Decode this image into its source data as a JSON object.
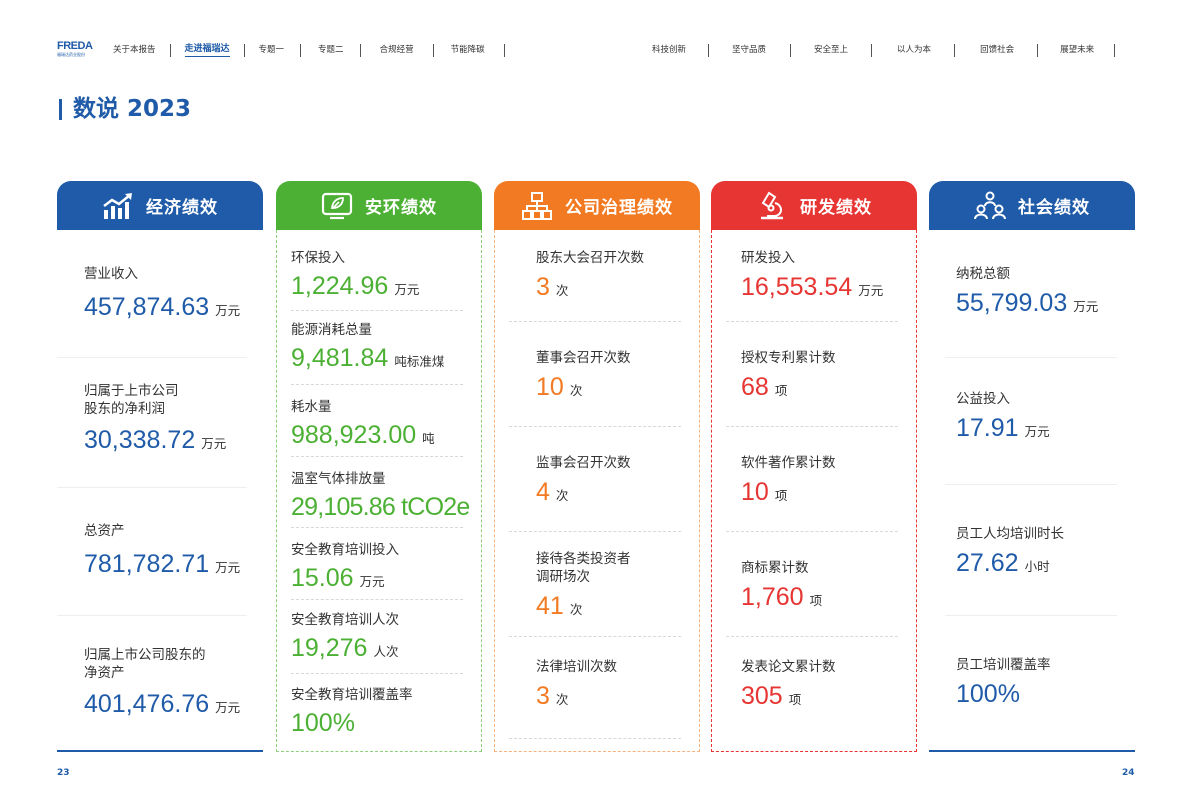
{
  "logo": {
    "text": "FREDA",
    "sub": "福瑞达药业股份"
  },
  "nav_left": [
    "关于本报告",
    "走进福瑞达",
    "专题一",
    "专题二",
    "合规经营",
    "节能降碳"
  ],
  "nav_active_index": 1,
  "nav_right": [
    "科技创新",
    "坚守品质",
    "安全至上",
    "以人为本",
    "回馈社会",
    "展望未来"
  ],
  "page_title": "数说 2023",
  "colors": {
    "blue": "#1f5ba8",
    "green": "#4cb034",
    "orange": "#f27a22",
    "red": "#e63532"
  },
  "cards": {
    "econ": {
      "title": "经济绩效",
      "icon": "growth-chart-icon",
      "metrics": [
        {
          "label": "营业收入",
          "value": "457,874.63",
          "unit": "万元"
        },
        {
          "label": "归属于上市公司\n股东的净利润",
          "value": "30,338.72",
          "unit": "万元"
        },
        {
          "label": "总资产",
          "value": "781,782.71",
          "unit": "万元"
        },
        {
          "label": "归属上市公司股东的\n净资产",
          "value": "401,476.76",
          "unit": "万元"
        }
      ]
    },
    "env": {
      "title": "安环绩效",
      "icon": "leaf-screen-icon",
      "metrics": [
        {
          "label": "环保投入",
          "value": "1,224.96",
          "unit": "万元"
        },
        {
          "label": "能源消耗总量",
          "value": "9,481.84",
          "unit": "吨标准煤"
        },
        {
          "label": "耗水量",
          "value": "988,923.00",
          "unit": "吨"
        },
        {
          "label": "温室气体排放量",
          "value": "29,105.86 tCO2e",
          "unit": ""
        },
        {
          "label": "安全教育培训投入",
          "value": "15.06",
          "unit": "万元"
        },
        {
          "label": "安全教育培训人次",
          "value": "19,276",
          "unit": "人次"
        },
        {
          "label": "安全教育培训覆盖率",
          "value": "100%",
          "unit": ""
        }
      ]
    },
    "gov": {
      "title": "公司治理绩效",
      "icon": "org-chart-icon",
      "metrics": [
        {
          "label": "股东大会召开次数",
          "value": "3",
          "unit": "次"
        },
        {
          "label": "董事会召开次数",
          "value": "10",
          "unit": "次"
        },
        {
          "label": "监事会召开次数",
          "value": "4",
          "unit": "次"
        },
        {
          "label": "接待各类投资者\n调研场次",
          "value": "41",
          "unit": "次"
        },
        {
          "label": "法律培训次数",
          "value": "3",
          "unit": "次"
        }
      ]
    },
    "rd": {
      "title": "研发绩效",
      "icon": "microscope-icon",
      "metrics": [
        {
          "label": "研发投入",
          "value": "16,553.54",
          "unit": "万元"
        },
        {
          "label": "授权专利累计数",
          "value": "68",
          "unit": "项"
        },
        {
          "label": "软件著作累计数",
          "value": "10",
          "unit": "项"
        },
        {
          "label": "商标累计数",
          "value": "1,760",
          "unit": "项"
        },
        {
          "label": "发表论文累计数",
          "value": "305",
          "unit": "项"
        }
      ]
    },
    "soc": {
      "title": "社会绩效",
      "icon": "people-network-icon",
      "metrics": [
        {
          "label": "纳税总额",
          "value": "55,799.03",
          "unit": "万元"
        },
        {
          "label": "公益投入",
          "value": "17.91",
          "unit": "万元"
        },
        {
          "label": "员工人均培训时长",
          "value": "27.62",
          "unit": "小时"
        },
        {
          "label": "员工培训覆盖率",
          "value": "100%",
          "unit": ""
        }
      ]
    }
  },
  "page_numbers": {
    "left": "23",
    "right": "24"
  }
}
